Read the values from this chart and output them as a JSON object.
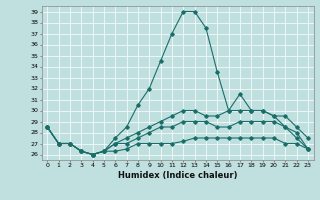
{
  "xlabel": "Humidex (Indice chaleur)",
  "bg_color": "#c0e0e0",
  "line_color": "#1a6e6a",
  "ylim": [
    25.5,
    39.5
  ],
  "xlim": [
    -0.5,
    23.5
  ],
  "yticks": [
    26,
    27,
    28,
    29,
    30,
    31,
    32,
    33,
    34,
    35,
    36,
    37,
    38,
    39
  ],
  "xticks": [
    0,
    1,
    2,
    3,
    4,
    5,
    6,
    7,
    8,
    9,
    10,
    11,
    12,
    13,
    14,
    15,
    16,
    17,
    18,
    19,
    20,
    21,
    22,
    23
  ],
  "series": [
    {
      "x": [
        0,
        1,
        2,
        3,
        4,
        5,
        6,
        7,
        8,
        9,
        10,
        11,
        12,
        13,
        14,
        15,
        16,
        17,
        18,
        19,
        20,
        21,
        22,
        23
      ],
      "y": [
        28.5,
        27.0,
        27.0,
        26.3,
        26.0,
        26.3,
        27.5,
        28.5,
        30.5,
        32.0,
        34.5,
        37.0,
        39.0,
        39.0,
        37.5,
        33.5,
        30.0,
        31.5,
        30.0,
        30.0,
        29.5,
        29.5,
        28.5,
        27.5
      ]
    },
    {
      "x": [
        0,
        1,
        2,
        3,
        4,
        5,
        6,
        7,
        8,
        9,
        10,
        11,
        12,
        13,
        14,
        15,
        16,
        17,
        18,
        19,
        20,
        21,
        22,
        23
      ],
      "y": [
        28.5,
        27.0,
        27.0,
        26.3,
        26.0,
        26.3,
        27.0,
        27.5,
        28.0,
        28.5,
        29.0,
        29.5,
        30.0,
        30.0,
        29.5,
        29.5,
        30.0,
        30.0,
        30.0,
        30.0,
        29.5,
        28.5,
        28.0,
        26.5
      ]
    },
    {
      "x": [
        0,
        1,
        2,
        3,
        4,
        5,
        6,
        7,
        8,
        9,
        10,
        11,
        12,
        13,
        14,
        15,
        16,
        17,
        18,
        19,
        20,
        21,
        22,
        23
      ],
      "y": [
        28.5,
        27.0,
        27.0,
        26.3,
        26.0,
        26.3,
        27.0,
        27.0,
        27.5,
        28.0,
        28.5,
        28.5,
        29.0,
        29.0,
        29.0,
        28.5,
        28.5,
        29.0,
        29.0,
        29.0,
        29.0,
        28.5,
        27.5,
        26.5
      ]
    },
    {
      "x": [
        0,
        1,
        2,
        3,
        4,
        5,
        6,
        7,
        8,
        9,
        10,
        11,
        12,
        13,
        14,
        15,
        16,
        17,
        18,
        19,
        20,
        21,
        22,
        23
      ],
      "y": [
        28.5,
        27.0,
        27.0,
        26.3,
        26.0,
        26.3,
        26.3,
        26.5,
        27.0,
        27.0,
        27.0,
        27.0,
        27.2,
        27.5,
        27.5,
        27.5,
        27.5,
        27.5,
        27.5,
        27.5,
        27.5,
        27.0,
        27.0,
        26.5
      ]
    }
  ]
}
